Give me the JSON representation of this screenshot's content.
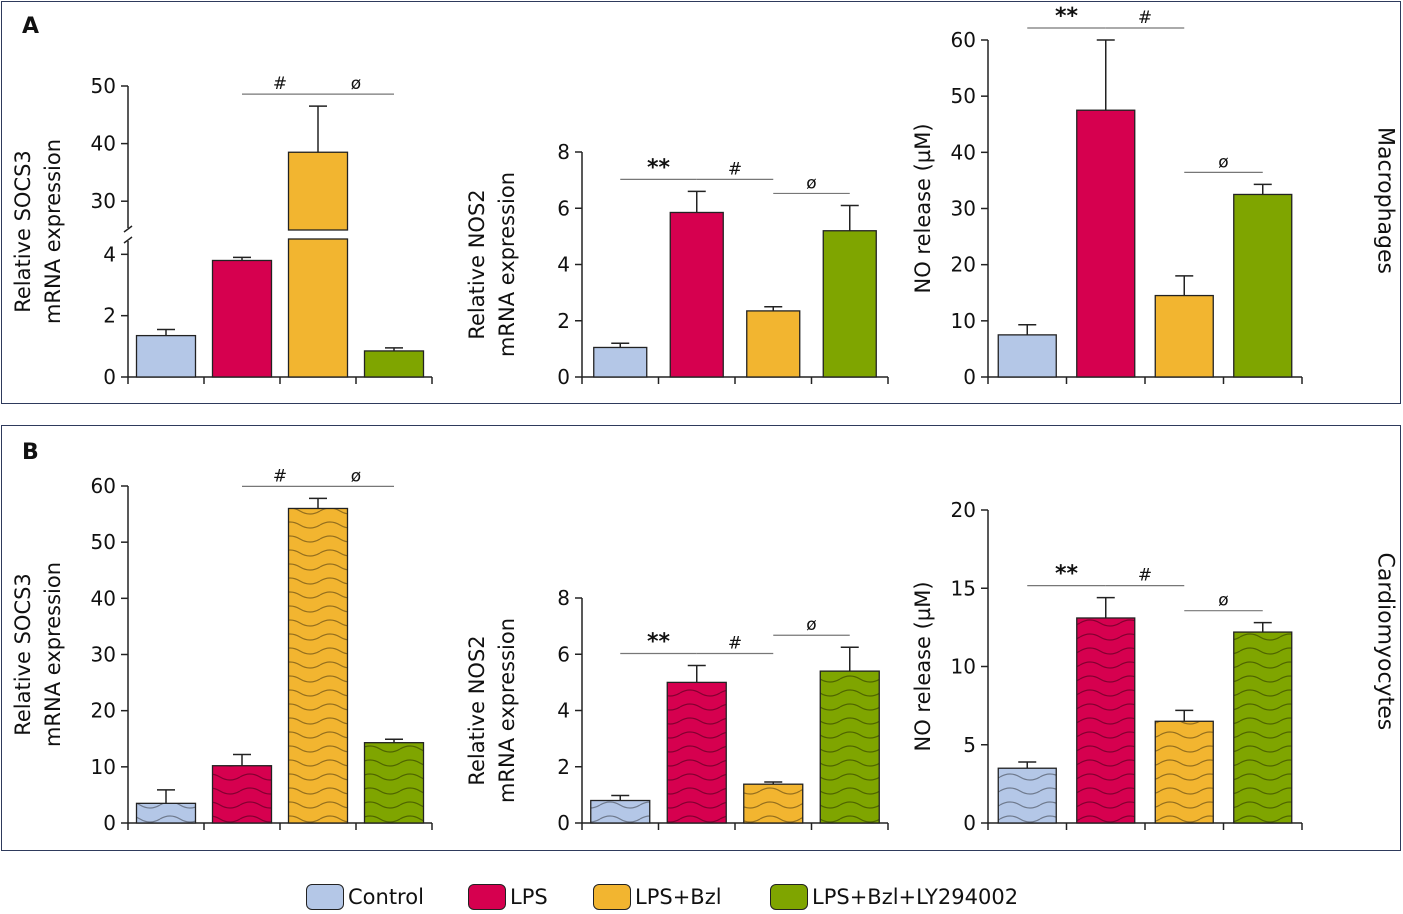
{
  "panels": {
    "a": {
      "letter": "A",
      "side_label": "Macrophages"
    },
    "b": {
      "letter": "B",
      "side_label": "Cardiomyocytes"
    }
  },
  "colors": {
    "Control": "#b4c7e7",
    "LPS": "#d6004f",
    "LPS+Bzl": "#f2b530",
    "LPS+Bzl+LY294002": "#7fa500"
  },
  "legend": [
    {
      "label": "Control",
      "color": "#b4c7e7"
    },
    {
      "label": "LPS",
      "color": "#d6004f"
    },
    {
      "label": "LPS+Bzl",
      "color": "#f2b530"
    },
    {
      "label": "LPS+Bzl+LY294002",
      "color": "#7fa500"
    }
  ],
  "chart_data": [
    {
      "id": "a1",
      "type": "bar",
      "panel": "A",
      "pattern": "solid",
      "ylabel": [
        "Relative SOCS3",
        "mRNA expression"
      ],
      "axis_break": {
        "lower": [
          0,
          4.5
        ],
        "upper": [
          25,
          50
        ]
      },
      "yticks": [
        0,
        2,
        4,
        30,
        40,
        50
      ],
      "categories": [
        "Control",
        "LPS",
        "LPS+Bzl",
        "LPS+Bzl+LY294002"
      ],
      "values": [
        1.35,
        3.8,
        38.5,
        0.85
      ],
      "errors": [
        0.2,
        0.1,
        8.0,
        0.1
      ],
      "annotations": [
        {
          "text": "#",
          "from": 1,
          "to": 2
        },
        {
          "text": "ø",
          "from": 2,
          "to": 3
        }
      ]
    },
    {
      "id": "a2",
      "type": "bar",
      "panel": "A",
      "pattern": "solid",
      "ylabel": [
        "Relative NOS2",
        "mRNA expression"
      ],
      "ylim": [
        0,
        8
      ],
      "yticks": [
        0,
        2,
        4,
        6,
        8
      ],
      "categories": [
        "Control",
        "LPS",
        "LPS+Bzl",
        "LPS+Bzl+LY294002"
      ],
      "values": [
        1.05,
        5.85,
        2.35,
        5.2
      ],
      "errors": [
        0.15,
        0.75,
        0.15,
        0.9
      ],
      "annotations": [
        {
          "text": "**",
          "from": 0,
          "to": 1
        },
        {
          "text": "#",
          "from": 1,
          "to": 2
        },
        {
          "text": "ø",
          "from": 2,
          "to": 3
        }
      ]
    },
    {
      "id": "a3",
      "type": "bar",
      "panel": "A",
      "pattern": "solid",
      "ylabel": [
        "NO release (µM)"
      ],
      "ylim": [
        0,
        60
      ],
      "yticks": [
        0,
        10,
        20,
        30,
        40,
        50,
        60
      ],
      "categories": [
        "Control",
        "LPS",
        "LPS+Bzl",
        "LPS+Bzl+LY294002"
      ],
      "values": [
        7.5,
        47.5,
        14.5,
        32.5
      ],
      "errors": [
        1.8,
        12.5,
        3.5,
        1.8
      ],
      "annotations": [
        {
          "text": "**",
          "from": 0,
          "to": 1
        },
        {
          "text": "#",
          "from": 1,
          "to": 2
        },
        {
          "text": "ø",
          "from": 2,
          "to": 3
        }
      ]
    },
    {
      "id": "b1",
      "type": "bar",
      "panel": "B",
      "pattern": "wavy",
      "ylabel": [
        "Relative SOCS3",
        "mRNA expression"
      ],
      "ylim": [
        0,
        60
      ],
      "yticks": [
        0,
        10,
        20,
        30,
        40,
        50,
        60
      ],
      "categories": [
        "Control",
        "LPS",
        "LPS+Bzl",
        "LPS+Bzl+LY294002"
      ],
      "values": [
        3.5,
        10.2,
        56.0,
        14.3
      ],
      "errors": [
        2.4,
        2.0,
        1.8,
        0.6
      ],
      "annotations": [
        {
          "text": "#",
          "from": 1,
          "to": 2
        },
        {
          "text": "ø",
          "from": 2,
          "to": 3
        }
      ]
    },
    {
      "id": "b2",
      "type": "bar",
      "panel": "B",
      "pattern": "wavy",
      "ylabel": [
        "Relative NOS2",
        "mRNA expression"
      ],
      "ylim": [
        0,
        8
      ],
      "yticks": [
        0,
        2,
        4,
        6,
        8
      ],
      "categories": [
        "Control",
        "LPS",
        "LPS+Bzl",
        "LPS+Bzl+LY294002"
      ],
      "values": [
        0.8,
        5.0,
        1.38,
        5.4
      ],
      "errors": [
        0.18,
        0.6,
        0.08,
        0.85
      ],
      "annotations": [
        {
          "text": "**",
          "from": 0,
          "to": 1
        },
        {
          "text": "#",
          "from": 1,
          "to": 2
        },
        {
          "text": "ø",
          "from": 2,
          "to": 3
        }
      ]
    },
    {
      "id": "b3",
      "type": "bar",
      "panel": "B",
      "pattern": "wavy",
      "ylabel": [
        "NO release (µM)"
      ],
      "ylim": [
        0,
        20
      ],
      "yticks": [
        0,
        5,
        10,
        15,
        20
      ],
      "categories": [
        "Control",
        "LPS",
        "LPS+Bzl",
        "LPS+Bzl+LY294002"
      ],
      "values": [
        3.5,
        13.1,
        6.5,
        12.2
      ],
      "errors": [
        0.4,
        1.3,
        0.7,
        0.6
      ],
      "annotations": [
        {
          "text": "**",
          "from": 0,
          "to": 1
        },
        {
          "text": "#",
          "from": 1,
          "to": 2
        },
        {
          "text": "ø",
          "from": 2,
          "to": 3
        }
      ]
    }
  ]
}
